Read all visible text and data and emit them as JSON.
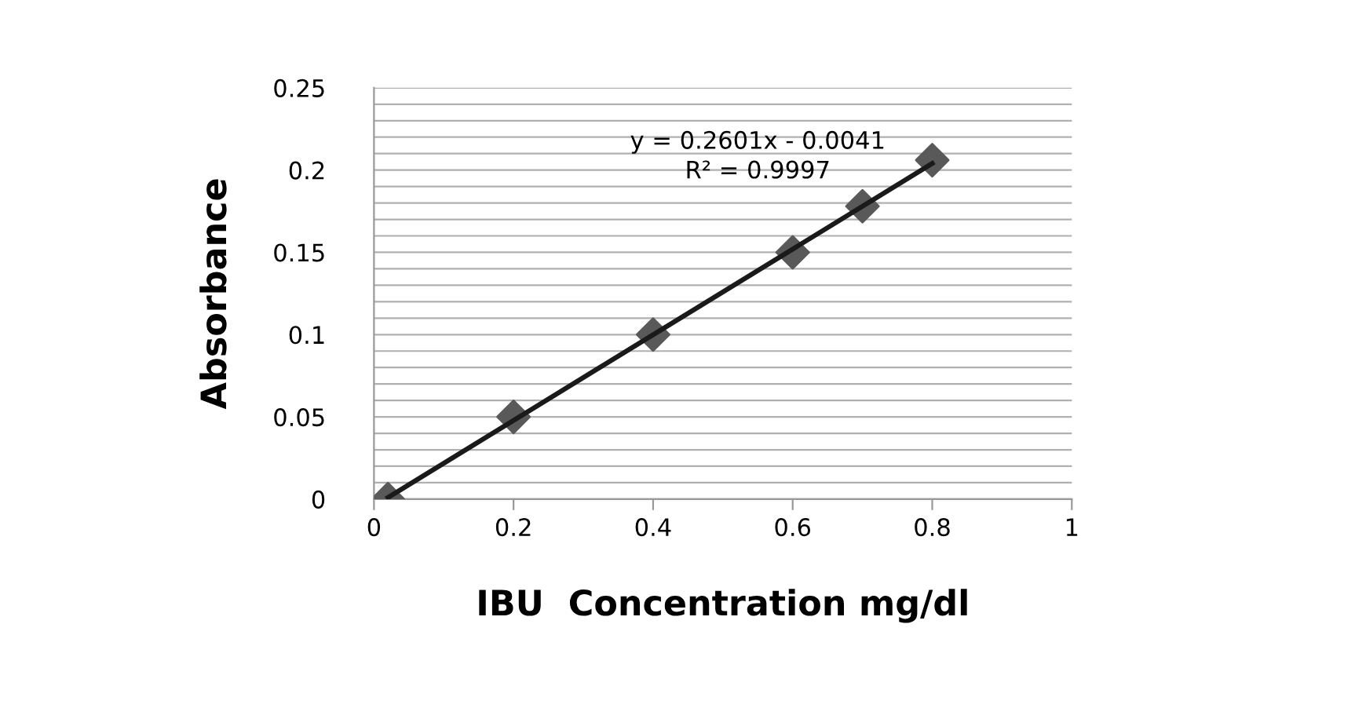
{
  "chart_data": {
    "type": "scatter",
    "xlabel": "IBU  Concentration mg/dl",
    "ylabel": "Absorbance",
    "x": [
      0.02,
      0.2,
      0.4,
      0.6,
      0.7,
      0.8
    ],
    "series": [
      {
        "color": "#595959",
        "marker": "diamond",
        "values": [
          0,
          0.05,
          0.1,
          0.15,
          0.178,
          0.206
        ]
      },
      {
        "type": "line",
        "color": "#1a1a1a",
        "marker": "none",
        "line_style": "solid",
        "x": [
          0.02,
          0.8
        ],
        "values": [
          0.001,
          0.204
        ]
      }
    ],
    "xlim": [
      0,
      1
    ],
    "xticks": [
      0,
      0.2,
      0.4,
      0.6,
      0.8,
      1
    ],
    "ylim": [
      0,
      0.25
    ],
    "yticks": [
      0,
      {
        "value": 0.01,
        "label": null
      },
      {
        "value": 0.02,
        "label": null
      },
      {
        "value": 0.03,
        "label": null
      },
      {
        "value": 0.04,
        "label": null
      },
      0.05,
      {
        "value": 0.06,
        "label": null
      },
      {
        "value": 0.07,
        "label": null
      },
      {
        "value": 0.08,
        "label": null
      },
      {
        "value": 0.09,
        "label": null
      },
      0.1,
      {
        "value": 0.11,
        "label": null
      },
      {
        "value": 0.12,
        "label": null
      },
      {
        "value": 0.13,
        "label": null
      },
      {
        "value": 0.14,
        "label": null
      },
      0.15,
      {
        "value": 0.16,
        "label": null
      },
      {
        "value": 0.17,
        "label": null
      },
      {
        "value": 0.18,
        "label": null
      },
      {
        "value": 0.19,
        "label": null
      },
      0.2,
      {
        "value": 0.21,
        "label": null
      },
      {
        "value": 0.22,
        "label": null
      },
      {
        "value": 0.23,
        "label": null
      },
      {
        "value": 0.24,
        "label": null
      },
      0.25
    ],
    "grid": "y",
    "legend": false,
    "annotations": [
      "y = 0.2601x - 0.0041",
      "R² = 0.9997"
    ]
  }
}
